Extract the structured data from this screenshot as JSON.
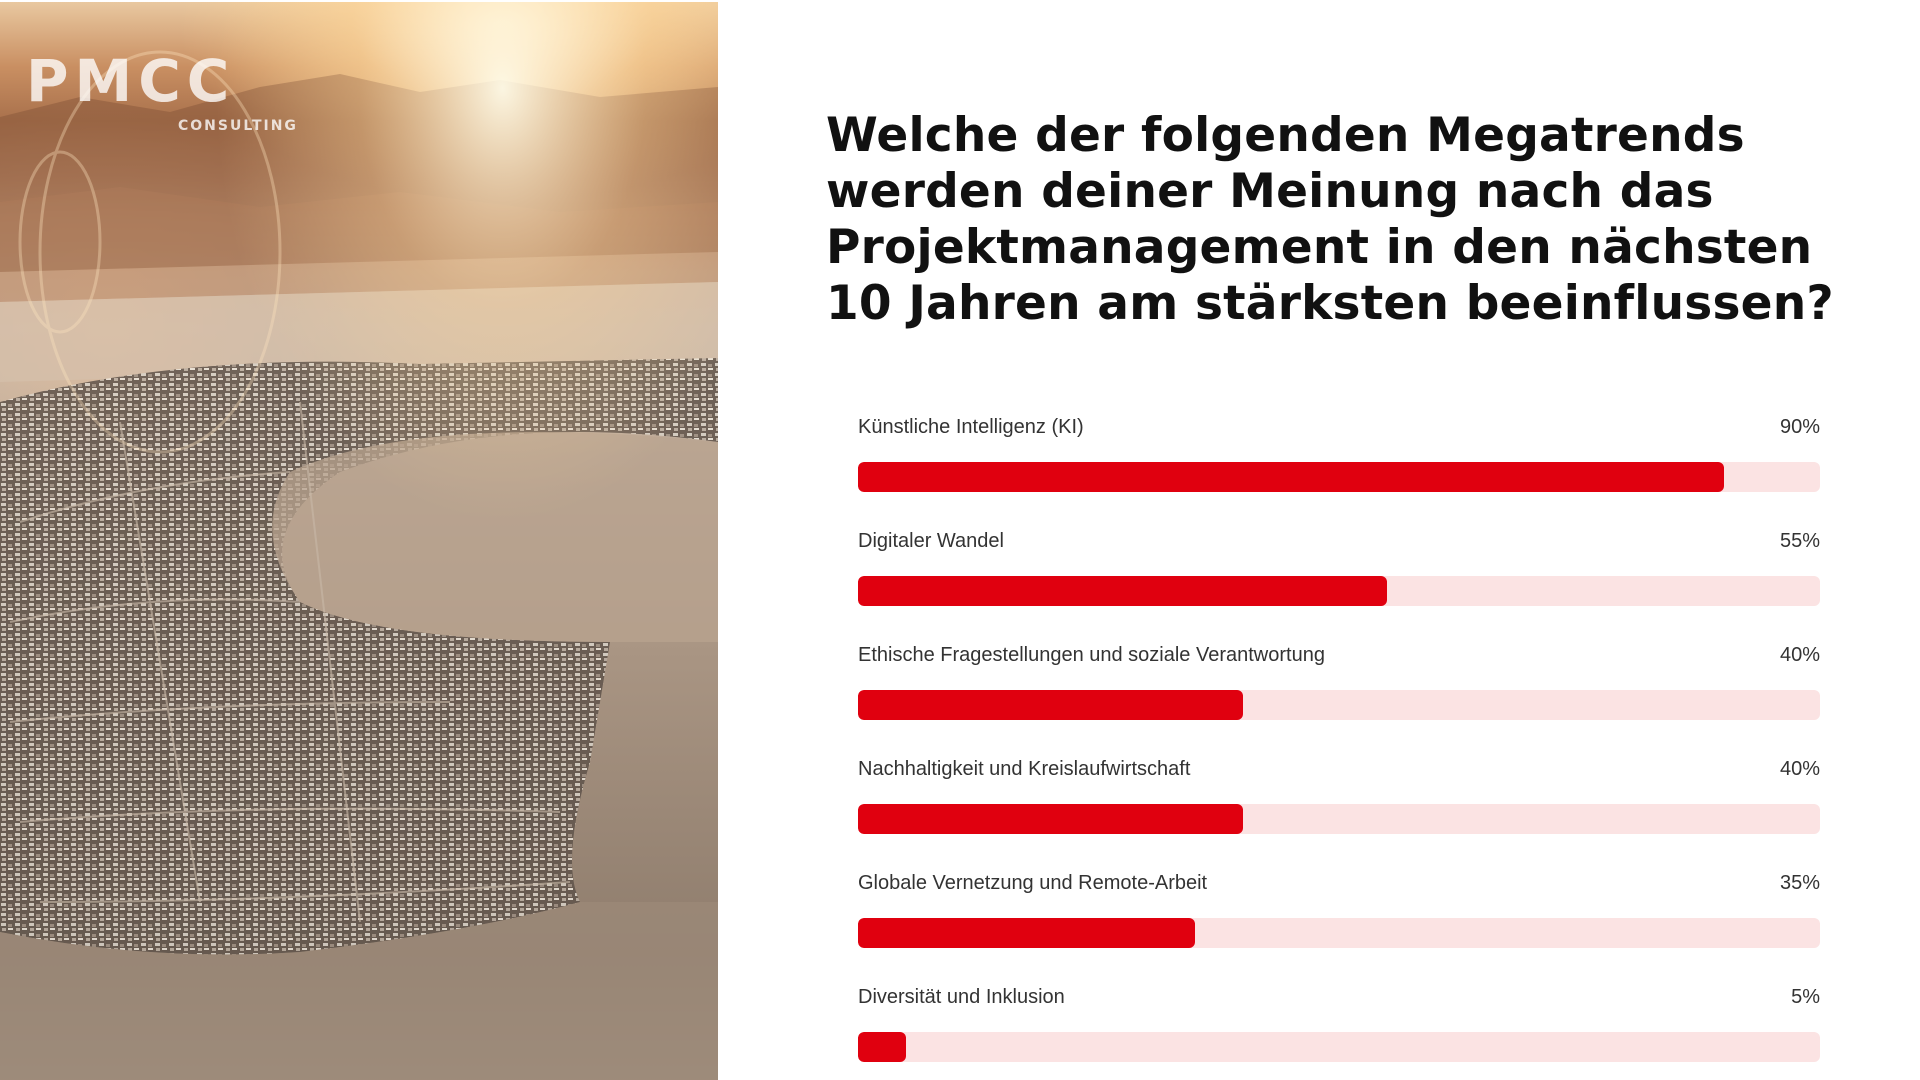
{
  "logo": {
    "text": "PMCC",
    "subtext": "CONSULTING"
  },
  "title": "Welche der folgenden Megatrends werden deiner Meinung nach das Projektmanagement in den nächsten 10 Jahren am stärksten beeinflussen?",
  "colors": {
    "bar_fill": "#e0000f",
    "bar_track": "#fbe3e3",
    "text": "#333333",
    "title": "#111111"
  },
  "chart_data": {
    "type": "bar",
    "orientation": "horizontal",
    "title": "Welche der folgenden Megatrends werden deiner Meinung nach das Projektmanagement in den nächsten 10 Jahren am stärksten beeinflussen?",
    "categories": [
      "Künstliche Intelligenz (KI)",
      "Digitaler Wandel",
      "Ethische Fragestellungen und soziale Verantwortung",
      "Nachhaltigkeit und Kreislaufwirtschaft",
      "Globale Vernetzung und Remote-Arbeit",
      "Diversität und Inklusion"
    ],
    "values": [
      90,
      55,
      40,
      40,
      35,
      5
    ],
    "value_labels": [
      "90%",
      "55%",
      "40%",
      "40%",
      "35%",
      "5%"
    ],
    "xlim": [
      0,
      100
    ],
    "unit": "%",
    "grid": false,
    "legend": "none"
  }
}
